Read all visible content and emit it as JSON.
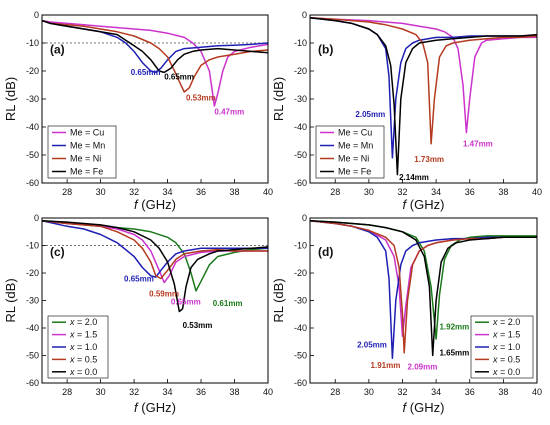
{
  "chart_data": [
    {
      "type": "line",
      "panel_label": "(a)",
      "xlabel_italic": "f",
      "xlabel_unit": " (GHz)",
      "ylabel": "RL (dB)",
      "xlim": [
        26.5,
        40
      ],
      "ylim": [
        -60,
        0
      ],
      "xticks": [
        "28",
        "30",
        "32",
        "34",
        "36",
        "38",
        "40"
      ],
      "yticks": [
        "0",
        "-10",
        "-20",
        "-30",
        "-40",
        "-50",
        "-60"
      ],
      "threshold": -10,
      "legend_position": "bottom-left",
      "series": [
        {
          "name": "Me = Cu",
          "color": "#cc33cc",
          "x": [
            26.5,
            27,
            28,
            29,
            30,
            31,
            32,
            33,
            34,
            35,
            35.5,
            36,
            36.5,
            36.8,
            37,
            37.3,
            37.6,
            38,
            39,
            40
          ],
          "y": [
            -2,
            -2.5,
            -3,
            -3.5,
            -4,
            -4.5,
            -5,
            -5.5,
            -6.5,
            -8,
            -10,
            -13,
            -20,
            -32.5,
            -28,
            -20,
            -15,
            -13,
            -11.5,
            -10.5
          ]
        },
        {
          "name": "Me = Mn",
          "color": "#1f1fb4",
          "x": [
            26.5,
            27,
            28,
            29,
            30,
            31,
            31.5,
            32,
            32.5,
            33,
            33.3,
            33.6,
            34,
            34.5,
            35,
            36,
            37,
            38,
            39,
            40
          ],
          "y": [
            -2,
            -3,
            -4,
            -5,
            -6,
            -8,
            -10,
            -13,
            -17,
            -20,
            -20.5,
            -19,
            -16,
            -13,
            -12,
            -11.5,
            -11,
            -10.8,
            -10.5,
            -10
          ]
        },
        {
          "name": "Me = Ni",
          "color": "#b43a20",
          "x": [
            26.5,
            27,
            28,
            29,
            30,
            31,
            32,
            33,
            33.5,
            34,
            34.5,
            34.8,
            35,
            35.3,
            35.6,
            36,
            36.5,
            37,
            38,
            39,
            40
          ],
          "y": [
            -2,
            -3,
            -3.5,
            -4,
            -5,
            -6,
            -7.5,
            -10,
            -12,
            -15,
            -21,
            -25,
            -27.5,
            -26,
            -22,
            -18,
            -16,
            -15,
            -14,
            -13,
            -12.5
          ]
        },
        {
          "name": "Me = Fe",
          "color": "#000000",
          "x": [
            26.5,
            27,
            28,
            29,
            30,
            31,
            31.5,
            32,
            32.5,
            33,
            33.5,
            33.8,
            34.2,
            34.6,
            35,
            35.5,
            36,
            37,
            38,
            39,
            40
          ],
          "y": [
            -2,
            -3,
            -4,
            -5,
            -6,
            -7,
            -9,
            -11,
            -13,
            -16,
            -20,
            -20.5,
            -19,
            -16,
            -14,
            -13,
            -12.5,
            -12,
            -12.5,
            -13,
            -13.5
          ]
        }
      ],
      "annotations": [
        {
          "text": "0.65mm",
          "x": 31.8,
          "y": -21.5,
          "color": "#1f1fb4"
        },
        {
          "text": "0.65mm",
          "x": 33.8,
          "y": -23,
          "color": "#000000"
        },
        {
          "text": "0.53mm",
          "x": 35.1,
          "y": -30.5,
          "color": "#b43a20"
        },
        {
          "text": "0.47mm",
          "x": 36.8,
          "y": -35.5,
          "color": "#cc33cc"
        }
      ]
    },
    {
      "type": "line",
      "panel_label": "(b)",
      "xlabel_italic": "f",
      "xlabel_unit": " (GHz)",
      "ylabel": "RL (dB)",
      "xlim": [
        26.5,
        40
      ],
      "ylim": [
        -60,
        0
      ],
      "xticks": [
        "28",
        "30",
        "32",
        "34",
        "36",
        "38",
        "40"
      ],
      "yticks": [
        "0",
        "-10",
        "-20",
        "-30",
        "-40",
        "-50",
        "-60"
      ],
      "legend_position": "bottom-left",
      "series": [
        {
          "name": "Me = Cu",
          "color": "#cc33cc",
          "x": [
            26.5,
            28,
            30,
            32,
            33,
            34,
            34.5,
            35,
            35.3,
            35.6,
            35.8,
            36,
            36.3,
            36.7,
            37,
            38,
            39,
            40
          ],
          "y": [
            -1,
            -1.5,
            -2,
            -3,
            -4,
            -5,
            -6,
            -8,
            -12,
            -25,
            -42,
            -30,
            -15,
            -10,
            -9,
            -8.5,
            -8,
            -8
          ]
        },
        {
          "name": "Me = Mn",
          "color": "#1f1fb4",
          "x": [
            26.5,
            28,
            29,
            30,
            30.5,
            31,
            31.2,
            31.4,
            31.6,
            31.9,
            32.2,
            32.6,
            33,
            34,
            35,
            36,
            37,
            38,
            39,
            40
          ],
          "y": [
            -1,
            -2,
            -3,
            -5,
            -7,
            -12,
            -22,
            -51,
            -30,
            -17,
            -12,
            -10,
            -9,
            -8,
            -8,
            -7.5,
            -7.5,
            -7.5,
            -7.5,
            -7.5
          ]
        },
        {
          "name": "Me = Ni",
          "color": "#b43a20",
          "x": [
            26.5,
            28,
            30,
            31,
            32,
            32.8,
            33.2,
            33.5,
            33.7,
            33.9,
            34.2,
            34.6,
            35,
            36,
            37,
            38,
            39,
            40
          ],
          "y": [
            -1,
            -1.5,
            -2.5,
            -3.5,
            -5,
            -7,
            -10,
            -17,
            -46,
            -30,
            -15,
            -11,
            -10,
            -9,
            -8.5,
            -8,
            -8,
            -7.5
          ]
        },
        {
          "name": "Me = Fe",
          "color": "#000000",
          "x": [
            26.5,
            28,
            29,
            30,
            30.5,
            31,
            31.3,
            31.5,
            31.7,
            31.9,
            32.2,
            32.6,
            33,
            34,
            35,
            36,
            37,
            38,
            39,
            40
          ],
          "y": [
            -1,
            -2,
            -3,
            -5,
            -7,
            -11,
            -18,
            -32,
            -57,
            -30,
            -17,
            -12,
            -10,
            -9,
            -8.5,
            -8,
            -7.5,
            -7.5,
            -7.5,
            -7
          ]
        }
      ],
      "annotations": [
        {
          "text": "2.05mm",
          "x": 29.2,
          "y": -36.5,
          "color": "#1f1fb4"
        },
        {
          "text": "1.73mm",
          "x": 32.7,
          "y": -52.5,
          "color": "#b43a20"
        },
        {
          "text": "1.47mm",
          "x": 35.6,
          "y": -47,
          "color": "#cc33cc"
        },
        {
          "text": "2.14mm",
          "x": 31.8,
          "y": -59,
          "color": "#000000"
        }
      ]
    },
    {
      "type": "line",
      "panel_label": "(c)",
      "xlabel_italic": "f",
      "xlabel_unit": " (GHz)",
      "ylabel": "RL (dB)",
      "xlim": [
        26.5,
        40
      ],
      "ylim": [
        -60,
        0
      ],
      "xticks": [
        "28",
        "30",
        "32",
        "34",
        "36",
        "38",
        "40"
      ],
      "yticks": [
        "0",
        "-10",
        "-20",
        "-30",
        "-40",
        "-50",
        "-60"
      ],
      "threshold": -10,
      "legend_position": "bottom-left",
      "series": [
        {
          "name": "x = 2.0",
          "label_var": "x",
          "label_val": " = 2.0",
          "color": "#1a7a1a",
          "x": [
            26.5,
            28,
            30,
            32,
            33,
            34,
            34.5,
            35,
            35.4,
            35.7,
            36,
            36.5,
            37,
            38,
            39,
            40
          ],
          "y": [
            -1,
            -2,
            -3,
            -4,
            -5,
            -7,
            -9,
            -13,
            -20,
            -26.5,
            -23,
            -17,
            -14,
            -12.5,
            -11.5,
            -11
          ]
        },
        {
          "name": "x = 1.5",
          "label_var": "x",
          "label_val": " = 1.5",
          "color": "#cc33cc",
          "x": [
            26.5,
            28,
            30,
            31,
            32,
            32.5,
            33,
            33.5,
            33.8,
            34.1,
            34.5,
            35,
            36,
            37,
            38,
            39,
            40
          ],
          "y": [
            -1,
            -2,
            -3,
            -4,
            -6,
            -8,
            -12,
            -19,
            -23.5,
            -21,
            -16,
            -14,
            -12.5,
            -12,
            -12,
            -12,
            -12
          ]
        },
        {
          "name": "x = 1.0",
          "label_var": "x",
          "label_val": " = 1.0",
          "color": "#1f1fb4",
          "x": [
            26.5,
            28,
            29,
            30,
            31,
            32,
            32.5,
            33,
            33.3,
            33.6,
            34,
            34.5,
            35,
            36,
            37,
            38,
            39,
            40
          ],
          "y": [
            -1,
            -3,
            -4,
            -6,
            -9,
            -14,
            -18,
            -21,
            -21.5,
            -19,
            -16,
            -13,
            -12,
            -11,
            -11,
            -11,
            -11,
            -11
          ]
        },
        {
          "name": "x = 0.5",
          "label_var": "x",
          "label_val": " = 0.5",
          "color": "#b43a20",
          "x": [
            26.5,
            28,
            30,
            31,
            32,
            32.5,
            33,
            33.3,
            33.6,
            34,
            34.5,
            35,
            36,
            37,
            38,
            39,
            40
          ],
          "y": [
            -1,
            -2,
            -3,
            -5,
            -8,
            -11,
            -16,
            -21,
            -22,
            -19,
            -15,
            -13,
            -12,
            -11.5,
            -12,
            -12,
            -12
          ]
        },
        {
          "name": "x = 0.0",
          "label_var": "x",
          "label_val": " = 0.0",
          "color": "#000000",
          "x": [
            26.5,
            28,
            30,
            31,
            32,
            33,
            33.5,
            34,
            34.4,
            34.7,
            34.9,
            35.1,
            35.4,
            35.8,
            36.5,
            37,
            38,
            39,
            40
          ],
          "y": [
            -1,
            -1.5,
            -2.5,
            -3.5,
            -5,
            -8,
            -11,
            -16,
            -24,
            -34,
            -33,
            -25,
            -18,
            -15,
            -13,
            -12,
            -11.5,
            -11,
            -10.5
          ]
        }
      ],
      "annotations": [
        {
          "text": "0.65mm",
          "x": 31.4,
          "y": -23,
          "color": "#1f1fb4"
        },
        {
          "text": "0.59mm",
          "x": 32.9,
          "y": -28.5,
          "color": "#b43a20"
        },
        {
          "text": "0.65mm",
          "x": 34.2,
          "y": -31.5,
          "color": "#cc33cc"
        },
        {
          "text": "0.61mm",
          "x": 36.7,
          "y": -32,
          "color": "#1a7a1a"
        },
        {
          "text": "0.53mm",
          "x": 34.9,
          "y": -40,
          "color": "#000000"
        }
      ]
    },
    {
      "type": "line",
      "panel_label": "(d)",
      "xlabel_italic": "f",
      "xlabel_unit": " (GHz)",
      "ylabel": "RL (dB)",
      "xlim": [
        26.5,
        40
      ],
      "ylim": [
        -60,
        0
      ],
      "xticks": [
        "28",
        "30",
        "32",
        "34",
        "36",
        "38",
        "40"
      ],
      "yticks": [
        "0",
        "-10",
        "-20",
        "-30",
        "-40",
        "-50",
        "-60"
      ],
      "legend_position": "bottom-right",
      "series": [
        {
          "name": "x = 2.0",
          "label_var": "x",
          "label_val": " = 2.0",
          "color": "#1a7a1a",
          "x": [
            26.5,
            28,
            30,
            31,
            32,
            32.8,
            33.3,
            33.7,
            34,
            34.2,
            34.5,
            34.9,
            35.4,
            36,
            37,
            38,
            39,
            40
          ],
          "y": [
            -1,
            -1.5,
            -2.5,
            -3.5,
            -5,
            -7,
            -12,
            -25,
            -44,
            -28,
            -15,
            -10,
            -8,
            -7,
            -6.5,
            -6.5,
            -6.5,
            -6.5
          ]
        },
        {
          "name": "x = 1.5",
          "label_var": "x",
          "label_val": " = 1.5",
          "color": "#cc33cc",
          "x": [
            26.5,
            28,
            29,
            30,
            31,
            31.5,
            31.8,
            32,
            32.2,
            32.5,
            33,
            33.5,
            34,
            35,
            36,
            37,
            38,
            39,
            40
          ],
          "y": [
            -1,
            -2,
            -3,
            -4.5,
            -8,
            -14,
            -25,
            -43,
            -32,
            -18,
            -12,
            -10,
            -9,
            -8,
            -7.5,
            -7.5,
            -7,
            -7,
            -7
          ]
        },
        {
          "name": "x = 1.0",
          "label_var": "x",
          "label_val": " = 1.0",
          "color": "#1f1fb4",
          "x": [
            26.5,
            28,
            29,
            30,
            30.5,
            31,
            31.2,
            31.4,
            31.6,
            31.9,
            32.2,
            32.6,
            33,
            34,
            35,
            36,
            37,
            38,
            39,
            40
          ],
          "y": [
            -1,
            -2,
            -3,
            -5,
            -7,
            -12,
            -22,
            -51,
            -30,
            -17,
            -12,
            -10,
            -9,
            -8,
            -7.5,
            -7.5,
            -7,
            -7,
            -7,
            -7
          ]
        },
        {
          "name": "x = 0.5",
          "label_var": "x",
          "label_val": " = 0.5",
          "color": "#b43a20",
          "x": [
            26.5,
            28,
            29,
            30,
            31,
            31.5,
            31.8,
            32,
            32.1,
            32.3,
            32.6,
            33,
            33.5,
            34,
            35,
            36,
            37,
            38,
            39,
            40
          ],
          "y": [
            -1,
            -2,
            -3,
            -4.5,
            -7,
            -10,
            -18,
            -35,
            -49,
            -30,
            -17,
            -12,
            -10,
            -9,
            -8,
            -7.5,
            -7.5,
            -7,
            -7,
            -7
          ]
        },
        {
          "name": "x = 0.0",
          "label_var": "x",
          "label_val": " = 0.0",
          "color": "#000000",
          "x": [
            26.5,
            28,
            30,
            31,
            32,
            32.8,
            33.3,
            33.6,
            33.8,
            34,
            34.3,
            34.7,
            35.2,
            36,
            37,
            38,
            39,
            40
          ],
          "y": [
            -1,
            -1.5,
            -2.5,
            -3.5,
            -5,
            -8,
            -14,
            -25,
            -50,
            -30,
            -16,
            -11,
            -9,
            -8,
            -7.5,
            -7,
            -7,
            -7
          ]
        }
      ],
      "annotations": [
        {
          "text": "2.05mm",
          "x": 29.3,
          "y": -47,
          "color": "#1f1fb4"
        },
        {
          "text": "1.91mm",
          "x": 30.1,
          "y": -54.5,
          "color": "#b43a20"
        },
        {
          "text": "2.09mm",
          "x": 32.3,
          "y": -55,
          "color": "#cc33cc"
        },
        {
          "text": "1.92mm",
          "x": 34.2,
          "y": -40.5,
          "color": "#1a7a1a"
        },
        {
          "text": "1.65mm",
          "x": 34.2,
          "y": -50,
          "color": "#000000"
        }
      ]
    }
  ]
}
